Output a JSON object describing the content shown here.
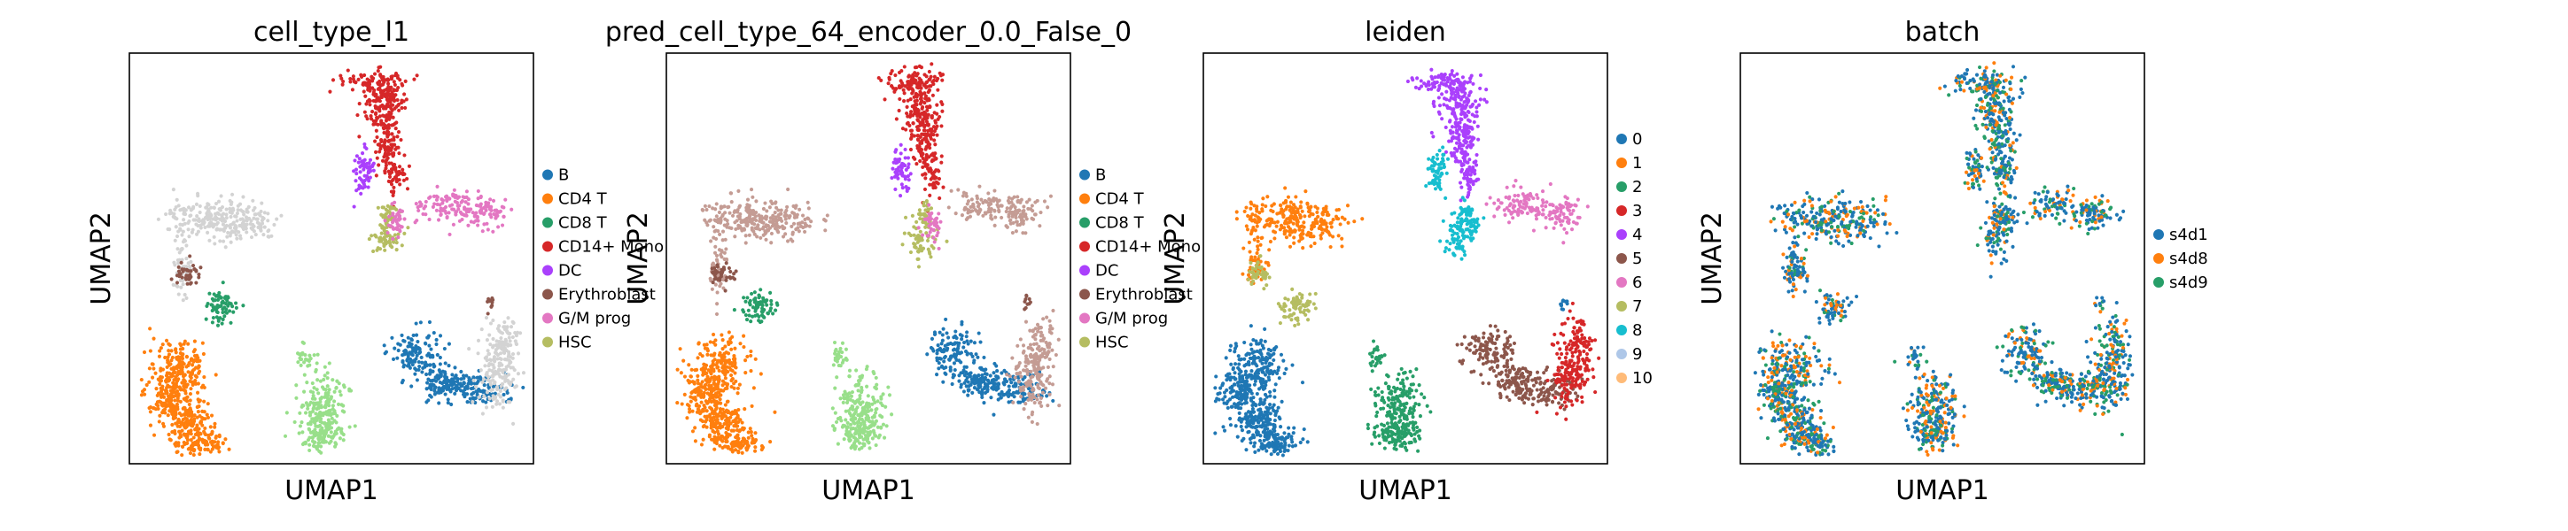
{
  "colors": {
    "c0": "#1f77b4",
    "c1": "#ff7f0e",
    "c2": "#279e68",
    "c3": "#d62728",
    "c4": "#aa40fc",
    "c5": "#8c564b",
    "c6": "#e377c2",
    "c7": "#b5bd61",
    "c8": "#17becf",
    "c9": "#aec7e8",
    "c10": "#ffbb78",
    "grey": "#d3d3d3",
    "pred_other": "#c49c94",
    "batch_green": "#279e68"
  },
  "chart_data": [
    {
      "type": "scatter",
      "title": "cell_type_l1",
      "xlabel": "UMAP1",
      "ylabel": "UMAP2",
      "legend_position": "right",
      "grid": false,
      "legend": [
        {
          "label": "B",
          "color": "#1f77b4"
        },
        {
          "label": "CD4 T",
          "color": "#ff7f0e"
        },
        {
          "label": "CD8 T",
          "color": "#279e68"
        },
        {
          "label": "CD14+ Mono",
          "color": "#d62728"
        },
        {
          "label": "DC",
          "color": "#aa40fc"
        },
        {
          "label": "Erythroblast",
          "color": "#8c564b"
        },
        {
          "label": "G/M prog",
          "color": "#e377c2"
        },
        {
          "label": "HSC",
          "color": "#b5bd61"
        }
      ]
    },
    {
      "type": "scatter",
      "title": "pred_cell_type_64_encoder_0.0_False_0",
      "xlabel": "UMAP1",
      "ylabel": "UMAP2",
      "legend_position": "right",
      "grid": false,
      "legend": [
        {
          "label": "B",
          "color": "#1f77b4"
        },
        {
          "label": "CD4 T",
          "color": "#ff7f0e"
        },
        {
          "label": "CD8 T",
          "color": "#279e68"
        },
        {
          "label": "CD14+ Mono",
          "color": "#d62728"
        },
        {
          "label": "DC",
          "color": "#aa40fc"
        },
        {
          "label": "Erythroblast",
          "color": "#8c564b"
        },
        {
          "label": "G/M prog",
          "color": "#e377c2"
        },
        {
          "label": "HSC",
          "color": "#b5bd61"
        }
      ]
    },
    {
      "type": "scatter",
      "title": "leiden",
      "xlabel": "UMAP1",
      "ylabel": "UMAP2",
      "legend_position": "right",
      "grid": false,
      "legend": [
        {
          "label": "0",
          "color": "#1f77b4"
        },
        {
          "label": "1",
          "color": "#ff7f0e"
        },
        {
          "label": "2",
          "color": "#279e68"
        },
        {
          "label": "3",
          "color": "#d62728"
        },
        {
          "label": "4",
          "color": "#aa40fc"
        },
        {
          "label": "5",
          "color": "#8c564b"
        },
        {
          "label": "6",
          "color": "#e377c2"
        },
        {
          "label": "7",
          "color": "#b5bd61"
        },
        {
          "label": "8",
          "color": "#17becf"
        },
        {
          "label": "9",
          "color": "#aec7e8"
        },
        {
          "label": "10",
          "color": "#ffbb78"
        }
      ]
    },
    {
      "type": "scatter",
      "title": "batch",
      "xlabel": "UMAP1",
      "ylabel": "UMAP2",
      "legend_position": "right",
      "grid": false,
      "legend": [
        {
          "label": "s4d1",
          "color": "#1f77b4"
        },
        {
          "label": "s4d8",
          "color": "#ff7f0e"
        },
        {
          "label": "s4d9",
          "color": "#279e68"
        }
      ]
    }
  ]
}
